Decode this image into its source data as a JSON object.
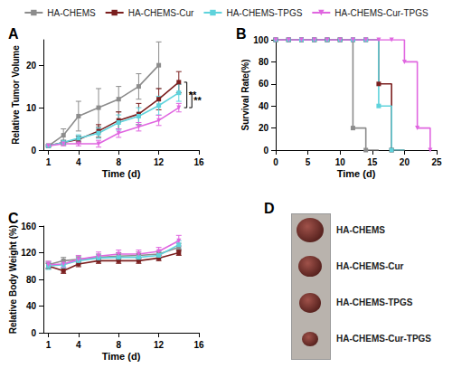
{
  "chart_data": [
    {
      "type": "line",
      "title": "A",
      "x_label": "Time (d)",
      "y_label": "Relative Tumor Volume",
      "x": [
        1,
        2.5,
        4,
        6,
        8,
        10,
        12,
        14
      ],
      "xlim": [
        0.5,
        16
      ],
      "xticks": [
        1,
        4,
        8,
        12,
        16
      ],
      "ylim": [
        0,
        26
      ],
      "yticks": [
        0,
        10,
        20
      ],
      "grid": false,
      "legend": "top",
      "series": [
        {
          "name": "HA-CHEMS",
          "color": "#8c8c8c",
          "marker": "square",
          "values": [
            1,
            3.5,
            8,
            10,
            12,
            15,
            20,
            null
          ],
          "errors": [
            0.3,
            1.5,
            3.5,
            4.5,
            3,
            3,
            5.5,
            null
          ]
        },
        {
          "name": "HA-CHEMS-Cur",
          "color": "#7b1f1f",
          "marker": "square",
          "values": [
            1,
            1.8,
            2.5,
            4.5,
            7,
            8.5,
            12,
            16
          ],
          "errors": [
            0.2,
            0.5,
            0.8,
            1.5,
            2,
            2.5,
            2.5,
            2.5
          ]
        },
        {
          "name": "HA-CHEMS-TPGS",
          "color": "#5fd3dc",
          "marker": "square",
          "values": [
            1,
            1.8,
            2.8,
            4,
            6.5,
            8,
            10.5,
            13.5
          ],
          "errors": [
            0.2,
            0.5,
            0.8,
            1.2,
            1.8,
            2,
            2.2,
            2
          ]
        },
        {
          "name": "HA-CHEMS-Cur-TPGS",
          "color": "#e066e0",
          "marker": "triangle-down",
          "values": [
            1,
            1.5,
            1.5,
            1.5,
            4,
            5.5,
            7,
            10
          ],
          "errors": [
            0.2,
            0.5,
            0.5,
            0.8,
            1,
            1,
            1.2,
            1
          ]
        }
      ],
      "annotations": [
        {
          "text": "**",
          "x": 14.8,
          "y": [
            10,
            16
          ]
        },
        {
          "text": "**",
          "x": 15.3,
          "y": [
            10,
            13.5
          ]
        }
      ]
    },
    {
      "type": "step",
      "title": "B",
      "x_label": "Time (d)",
      "y_label": "Survival Rate(%)",
      "x": [
        0,
        2,
        4,
        6,
        8,
        10,
        12,
        14,
        16,
        18,
        20,
        22,
        24
      ],
      "xlim": [
        0,
        25
      ],
      "xticks": [
        0,
        5,
        10,
        15,
        20,
        25
      ],
      "ylim": [
        0,
        100
      ],
      "yticks": [
        0,
        20,
        40,
        60,
        80,
        100
      ],
      "grid": false,
      "series": [
        {
          "name": "HA-CHEMS",
          "color": "#8c8c8c",
          "marker": "square",
          "values": [
            100,
            100,
            100,
            100,
            100,
            100,
            20,
            0,
            null,
            null,
            null,
            null,
            null
          ]
        },
        {
          "name": "HA-CHEMS-Cur",
          "color": "#7b1f1f",
          "marker": "square",
          "values": [
            100,
            100,
            100,
            100,
            100,
            100,
            100,
            100,
            60,
            0,
            null,
            null,
            null
          ]
        },
        {
          "name": "HA-CHEMS-TPGS",
          "color": "#5fd3dc",
          "marker": "square",
          "values": [
            100,
            100,
            100,
            100,
            100,
            100,
            100,
            100,
            40,
            0,
            null,
            null,
            null
          ]
        },
        {
          "name": "HA-CHEMS-Cur-TPGS",
          "color": "#e066e0",
          "marker": "triangle-down",
          "values": [
            100,
            100,
            100,
            100,
            100,
            100,
            100,
            100,
            100,
            100,
            80,
            20,
            0
          ]
        }
      ]
    },
    {
      "type": "line",
      "title": "C",
      "x_label": "Time (d)",
      "y_label": "Relative Body Weight (%)",
      "x": [
        1,
        2.5,
        4,
        6,
        8,
        10,
        12,
        14
      ],
      "xlim": [
        0.5,
        16
      ],
      "xticks": [
        1,
        4,
        8,
        12,
        16
      ],
      "ylim": [
        0,
        160
      ],
      "yticks": [
        0,
        40,
        80,
        120,
        160
      ],
      "grid": false,
      "series": [
        {
          "name": "HA-CHEMS",
          "color": "#8c8c8c",
          "marker": "square",
          "values": [
            102,
            108,
            110,
            113,
            115,
            116,
            118,
            128
          ],
          "errors": [
            5,
            5,
            5,
            5,
            5,
            5,
            5,
            6
          ]
        },
        {
          "name": "HA-CHEMS-Cur",
          "color": "#7b1f1f",
          "marker": "square",
          "values": [
            100,
            93,
            103,
            108,
            108,
            108,
            112,
            120
          ],
          "errors": [
            4,
            4,
            4,
            4,
            4,
            4,
            4,
            4
          ]
        },
        {
          "name": "HA-CHEMS-TPGS",
          "color": "#5fd3dc",
          "marker": "square",
          "values": [
            100,
            102,
            108,
            112,
            113,
            113,
            116,
            132
          ],
          "errors": [
            5,
            5,
            5,
            5,
            5,
            5,
            5,
            6
          ]
        },
        {
          "name": "HA-CHEMS-Cur-TPGS",
          "color": "#e066e0",
          "marker": "triangle-down",
          "values": [
            102,
            103,
            110,
            115,
            118,
            118,
            122,
            138
          ],
          "errors": [
            5,
            5,
            6,
            6,
            6,
            6,
            6,
            8
          ]
        }
      ]
    }
  ],
  "panel_d": {
    "label": "D",
    "items": [
      "HA-CHEMS",
      "HA-CHEMS-Cur",
      "HA-CHEMS-TPGS",
      "HA-CHEMS-Cur-TPGS"
    ]
  }
}
